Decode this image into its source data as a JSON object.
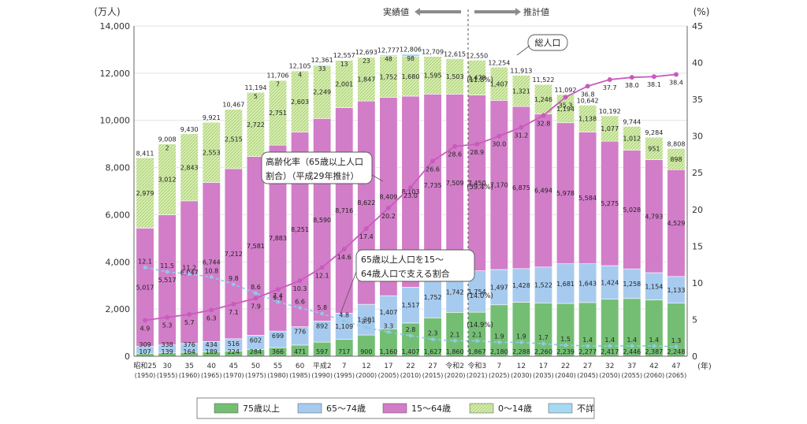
{
  "chart_data": {
    "type": "bar",
    "title": "",
    "ylabel_left": "(万人)",
    "ylabel_right": "(%)",
    "xlabel": "(年)",
    "ylim_left": [
      0,
      14000
    ],
    "ylim_right": [
      0,
      45
    ],
    "yticks_left": [
      "0",
      "2,000",
      "4,000",
      "6,000",
      "8,000",
      "10,000",
      "12,000",
      "14,000"
    ],
    "yticks_right": [
      "0",
      "5",
      "10",
      "15",
      "20",
      "25",
      "30",
      "35",
      "40",
      "45"
    ],
    "categories": [
      {
        "top": "昭和25",
        "bottom": "(1950)"
      },
      {
        "top": "30",
        "bottom": "(1955)"
      },
      {
        "top": "35",
        "bottom": "(1960)"
      },
      {
        "top": "40",
        "bottom": "(1965)"
      },
      {
        "top": "45",
        "bottom": "(1970)"
      },
      {
        "top": "50",
        "bottom": "(1975)"
      },
      {
        "top": "55",
        "bottom": "(1980)"
      },
      {
        "top": "60",
        "bottom": "(1985)"
      },
      {
        "top": "平成2",
        "bottom": "(1990)"
      },
      {
        "top": "7",
        "bottom": "(1995)"
      },
      {
        "top": "12",
        "bottom": "(2000)"
      },
      {
        "top": "17",
        "bottom": "(2005)"
      },
      {
        "top": "22",
        "bottom": "(2010)"
      },
      {
        "top": "27",
        "bottom": "(2015)"
      },
      {
        "top": "令和2",
        "bottom": "(2020)"
      },
      {
        "top": "令和3",
        "bottom": "(2021)"
      },
      {
        "top": "7",
        "bottom": "(2025)"
      },
      {
        "top": "12",
        "bottom": "(2030)"
      },
      {
        "top": "17",
        "bottom": "(2035)"
      },
      {
        "top": "22",
        "bottom": "(2040)"
      },
      {
        "top": "27",
        "bottom": "(2045)"
      },
      {
        "top": "32",
        "bottom": "(2050)"
      },
      {
        "top": "37",
        "bottom": "(2055)"
      },
      {
        "top": "42",
        "bottom": "(2060)"
      },
      {
        "top": "47",
        "bottom": "(2065)"
      }
    ],
    "series": [
      {
        "name": "75歳以上",
        "color": "#74be74",
        "values": [
          107,
          139,
          164,
          189,
          224,
          284,
          366,
          471,
          597,
          717,
          900,
          1160,
          1407,
          1627,
          1860,
          1867,
          2180,
          2288,
          2260,
          2239,
          2277,
          2417,
          2446,
          2387,
          2248
        ],
        "labels": [
          "107",
          "139",
          "164",
          "189",
          "224",
          "284",
          "366",
          "471",
          "597",
          "717",
          "900",
          "1,160",
          "1,407",
          "1,627",
          "1,860",
          "1,867",
          "2,180",
          "2,288",
          "2,260",
          "2,239",
          "2,277",
          "2,417",
          "2,446",
          "2,387",
          "2,248"
        ]
      },
      {
        "name": "65～74歳",
        "color": "#a7cbef",
        "values": [
          309,
          338,
          376,
          434,
          516,
          602,
          699,
          776,
          892,
          1109,
          1301,
          1407,
          1517,
          1752,
          1742,
          1754,
          1497,
          1428,
          1522,
          1681,
          1643,
          1424,
          1258,
          1154,
          1133
        ],
        "labels": [
          "309",
          "338",
          "376",
          "434",
          "516",
          "602",
          "699",
          "776",
          "892",
          "1,109",
          "1,301",
          "1,407",
          "1,517",
          "1,752",
          "1,742",
          "1,754",
          "1,497",
          "1,428",
          "1,522",
          "1,681",
          "1,643",
          "1,424",
          "1,258",
          "1,154",
          "1,133"
        ]
      },
      {
        "name": "15～64歳",
        "color": "#d27dc8",
        "values": [
          5017,
          5517,
          6047,
          6744,
          7212,
          7581,
          7883,
          8251,
          8590,
          8716,
          8622,
          8409,
          8103,
          7735,
          7509,
          7450,
          7170,
          6875,
          6494,
          5978,
          5584,
          5275,
          5028,
          4793,
          4529
        ],
        "labels": [
          "5,017",
          "5,517",
          "6,047",
          "6,744",
          "7,212",
          "7,581",
          "7,883",
          "8,251",
          "8,590",
          "8,716",
          "8,622",
          "8,409",
          "8,103",
          "7,735",
          "7,509",
          "7,450",
          "7,170",
          "6,875",
          "6,494",
          "5,978",
          "5,584",
          "5,275",
          "5,028",
          "4,793",
          "4,529"
        ]
      },
      {
        "name": "0～14歳",
        "color": "#d9ecb1",
        "values": [
          2979,
          3012,
          2843,
          2553,
          2515,
          2722,
          2751,
          2603,
          2249,
          2001,
          1847,
          1752,
          1680,
          1595,
          1503,
          1478,
          1407,
          1321,
          1246,
          1194,
          1138,
          1077,
          1012,
          951,
          898
        ],
        "labels": [
          "2,979",
          "3,012",
          "2,843",
          "2,553",
          "2,515",
          "2,722",
          "2,751",
          "2,603",
          "2,249",
          "2,001",
          "1,847",
          "1,752",
          "1,680",
          "1,595",
          "1,503",
          "1,478",
          "1,407",
          "1,321",
          "1,246",
          "1,194",
          "1,138",
          "1,077",
          "1,012",
          "951",
          "898"
        ]
      },
      {
        "name": "不詳",
        "color": "#a6d9f2",
        "values": [
          0,
          2,
          0,
          0,
          0,
          5,
          7,
          4,
          33,
          13,
          23,
          48,
          98,
          0,
          0,
          0,
          0,
          0,
          0,
          0,
          0,
          0,
          0,
          0,
          0
        ],
        "labels": [
          "0",
          "2",
          "0",
          "0",
          "0",
          "5",
          "7",
          "4",
          "33",
          "13",
          "23",
          "48",
          "98",
          "",
          "",
          "",
          "",
          "",
          "",
          "",
          "",
          "",
          "",
          "",
          ""
        ]
      }
    ],
    "totals": {
      "values": [
        8411,
        9008,
        9430,
        9921,
        10467,
        11194,
        11706,
        12105,
        12361,
        12557,
        12693,
        12777,
        12806,
        12709,
        12615,
        12550,
        12254,
        11913,
        11522,
        11092,
        10642,
        10192,
        9744,
        9284,
        8808
      ],
      "labels": [
        "8,411",
        "9,008",
        "9,430",
        "9,921",
        "10,467",
        "11,194",
        "11,706",
        "12,105",
        "12,361",
        "12,557",
        "12,693",
        "12,777",
        "12,806",
        "12,709",
        "12,615",
        "12,550",
        "12,254",
        "11,913",
        "11,522",
        "11,092",
        "10,642",
        "10,192",
        "9,744",
        "9,284",
        "8,808"
      ]
    },
    "aging_rate": {
      "name": "高齢化率（65歳以上人口割合）（平成29年推計）",
      "color": "#c95bbd",
      "values": [
        4.9,
        5.3,
        5.7,
        6.3,
        7.1,
        7.9,
        9.1,
        10.3,
        12.1,
        14.6,
        17.4,
        20.2,
        23.0,
        26.6,
        28.6,
        28.9,
        30.0,
        31.2,
        32.8,
        35.3,
        36.8,
        37.7,
        38.0,
        38.1,
        38.4
      ],
      "labels": [
        "4.9",
        "5.3",
        "5.7",
        "6.3",
        "7.1",
        "7.9",
        "9.1",
        "10.3",
        "12.1",
        "14.6",
        "17.4",
        "20.2",
        "23.0",
        "26.6",
        "28.6",
        "28.9",
        "30.0",
        "31.2",
        "32.8",
        "35.3",
        "36.8",
        "37.7",
        "38.0",
        "38.1",
        "38.4"
      ]
    },
    "support_ratio": {
      "name": "65歳以上人口を15～64歳人口で支える割合",
      "color": "#8ec9e8",
      "values": [
        12.1,
        11.5,
        11.2,
        10.8,
        9.8,
        8.6,
        7.4,
        6.6,
        5.8,
        4.8,
        3.9,
        3.3,
        2.8,
        2.3,
        2.1,
        2.1,
        1.9,
        1.9,
        1.7,
        1.5,
        1.4,
        1.4,
        1.4,
        1.4,
        1.3
      ],
      "labels": [
        "12.1",
        "11.5",
        "11.2",
        "10.8",
        "9.8",
        "8.6",
        "7.4",
        "6.6",
        "5.8",
        "4.8",
        "3.9",
        "3.3",
        "2.8",
        "2.3",
        "2.1",
        "2.1",
        "1.9",
        "1.9",
        "1.7",
        "1.5",
        "1.4",
        "1.4",
        "1.4",
        "1.4",
        "1.3"
      ]
    },
    "annotations": {
      "actual": "実績値",
      "estimate": "推計値",
      "total_pop": "総人口",
      "aging_line1": "高齢化率（65歳以上人口",
      "aging_line2": "割合）（平成29年推計）",
      "support_line1": "65歳以上人口を15～",
      "support_line2": "64歳人口で支える割合",
      "share_2021_1564": "(59.4%)",
      "share_2021_6574": "(14.0%)",
      "share_2021_75": "(14.9%)",
      "share_2021_014": "(11.8%)"
    },
    "legend": [
      "75歳以上",
      "65～74歳",
      "15～64歳",
      "0～14歳",
      "不詳"
    ]
  }
}
